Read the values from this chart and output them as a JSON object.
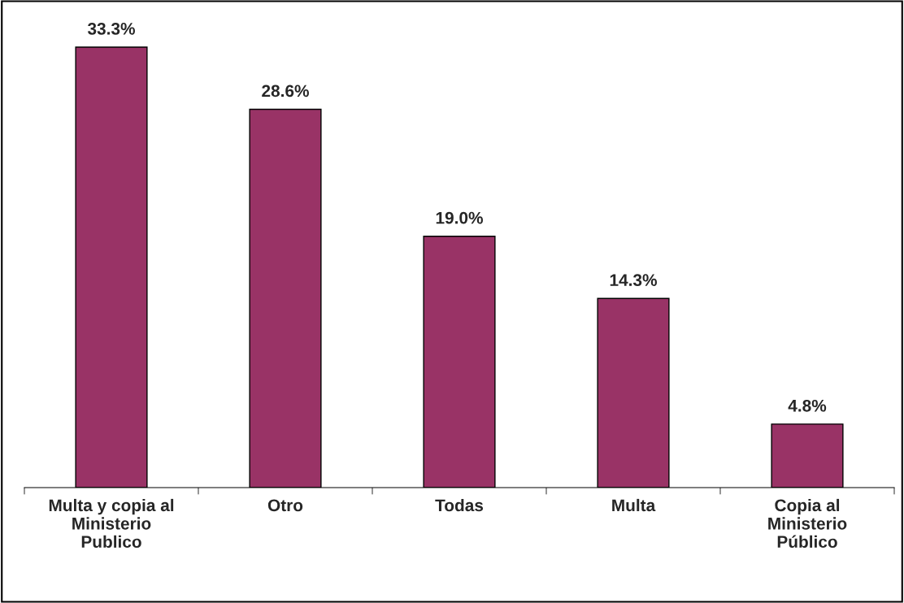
{
  "chart_data": {
    "type": "bar",
    "categories": [
      "Multa y copia al\nMinisterio\nPublico",
      "Otro",
      "Todas",
      "Multa",
      "Copia al\nMinisterio\nPúblico"
    ],
    "values": [
      33.3,
      28.6,
      19.0,
      14.3,
      4.8
    ],
    "value_labels": [
      "33.3%",
      "28.6%",
      "19.0%",
      "14.3%",
      "4.8%"
    ],
    "color": "#993366",
    "grid": false,
    "legend": false
  }
}
